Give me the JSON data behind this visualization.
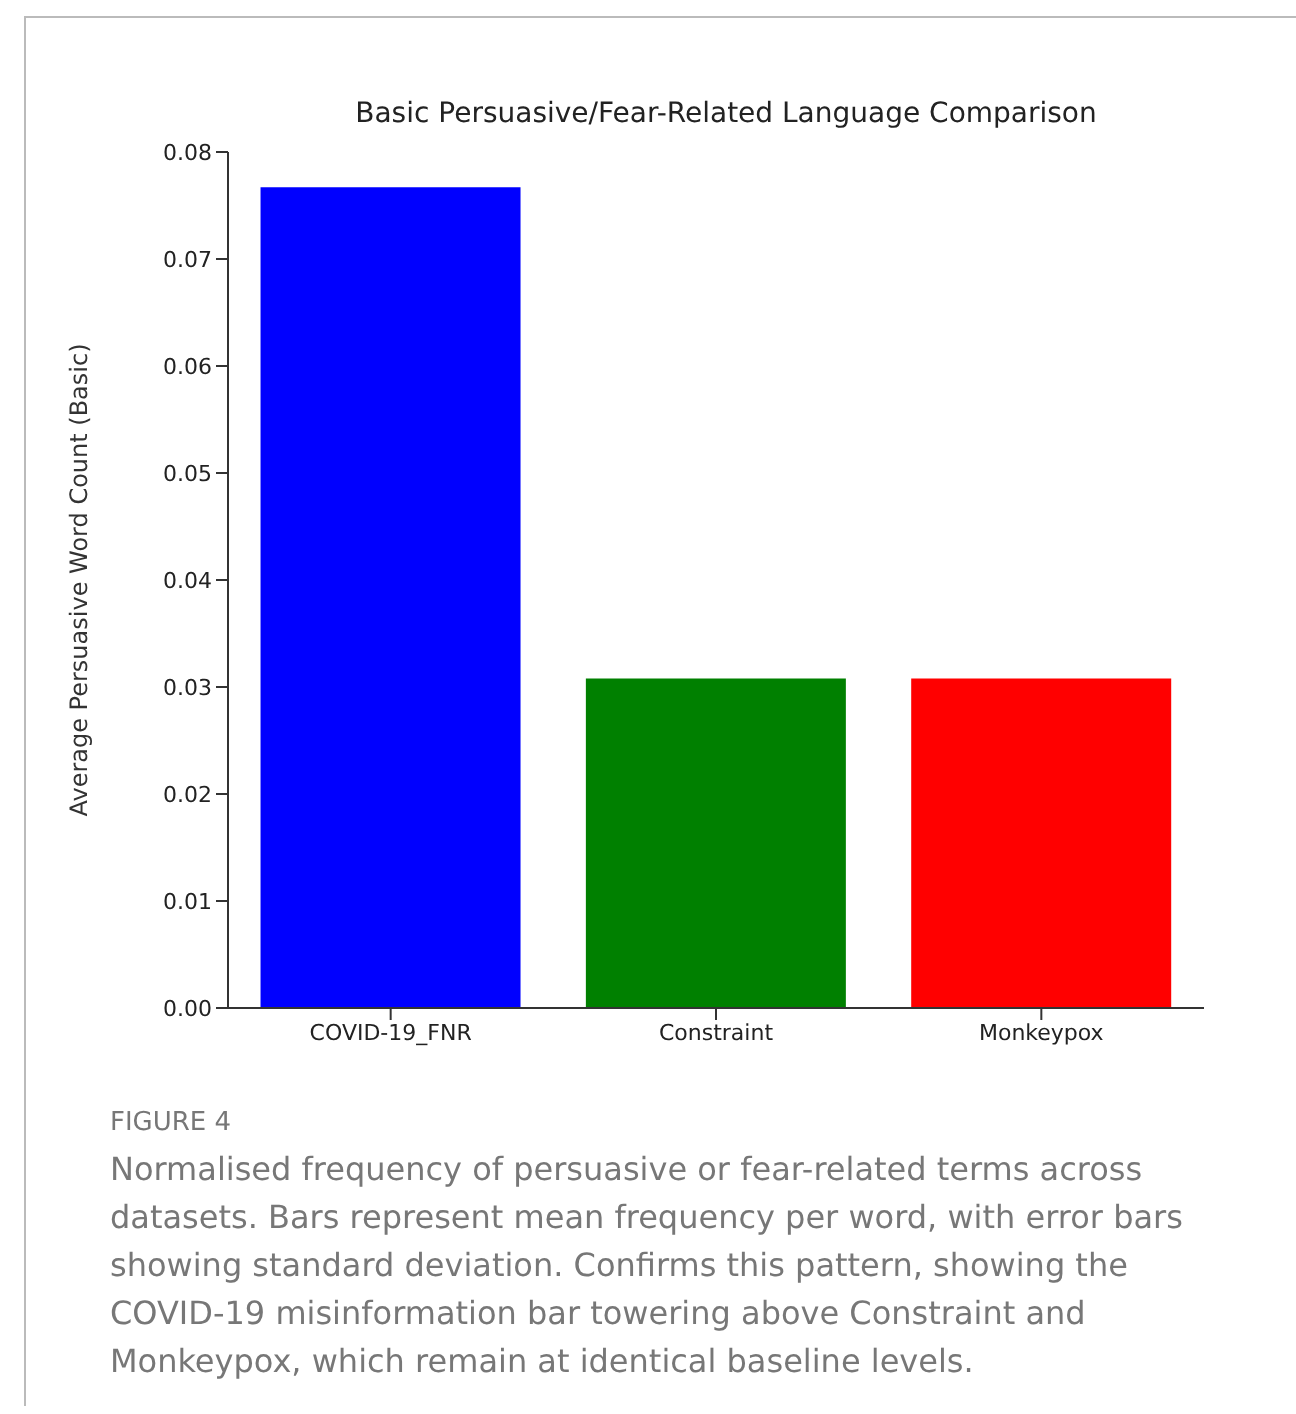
{
  "chart_data": {
    "type": "bar",
    "title": "Basic Persuasive/Fear-Related Language Comparison",
    "ylabel": "Average Persuasive Word Count (Basic)",
    "categories": [
      "COVID-19_FNR",
      "Constraint",
      "Monkeypox"
    ],
    "values": [
      0.0767,
      0.0308,
      0.0308
    ],
    "colors": [
      "#0000ff",
      "#008000",
      "#ff0000"
    ],
    "ylim": [
      0,
      0.08
    ],
    "yticks": [
      {
        "value": 0,
        "label": "0.00"
      },
      {
        "value": 0.01,
        "label": "0.01"
      },
      {
        "value": 0.02,
        "label": "0.02"
      },
      {
        "value": 0.03,
        "label": "0.03"
      },
      {
        "value": 0.04,
        "label": "0.04"
      },
      {
        "value": 0.05,
        "label": "0.05"
      },
      {
        "value": 0.06,
        "label": "0.06"
      },
      {
        "value": 0.07,
        "label": "0.07"
      },
      {
        "value": 0.08,
        "label": "0.08"
      }
    ],
    "grid": false,
    "legend": false,
    "annotations": [
      "FIGURE 4",
      "Normalised frequency of persuasive or fear-related terms across datasets. Bars represent mean frequency per word, with error bars showing standard deviation. Confirms this pattern, showing the COVID-19 misinformation bar towering above Constraint and Monkeypox, which remain at identical baseline levels."
    ]
  }
}
